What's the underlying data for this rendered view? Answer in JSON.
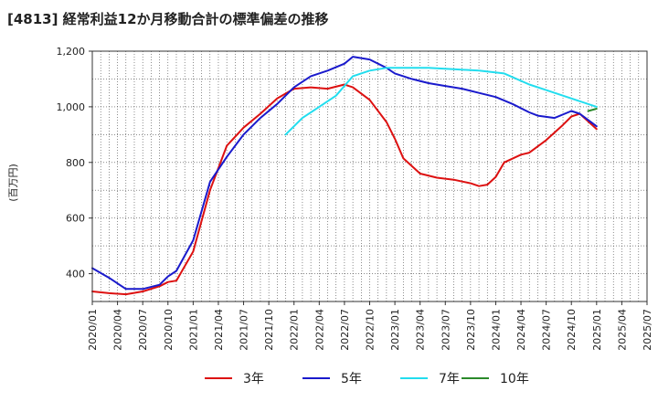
{
  "title": "[4813]  経常利益12か月移動合計の標準偏差の推移",
  "chart_data": {
    "type": "line",
    "title": "[4813]  経常利益12か月移動合計の標準偏差の推移",
    "ylabel": "(百万円)",
    "xlabel": "",
    "ylim": [
      300,
      1200
    ],
    "yticks": [
      400,
      600,
      800,
      1000,
      1200
    ],
    "ytick_labels": [
      "400",
      "600",
      "800",
      "1,000",
      "1,200"
    ],
    "xticks": [
      "2020/01",
      "2020/04",
      "2020/07",
      "2020/10",
      "2021/01",
      "2021/04",
      "2021/07",
      "2021/10",
      "2022/01",
      "2022/04",
      "2022/07",
      "2022/10",
      "2023/01",
      "2023/04",
      "2023/07",
      "2023/10",
      "2024/01",
      "2024/04",
      "2024/07",
      "2024/10",
      "2025/01",
      "2025/04",
      "2025/07"
    ],
    "grid": true,
    "legend_position": "bottom",
    "series": [
      {
        "name": "3年",
        "color": "#dd1111",
        "x": [
          "2020/01",
          "2020/03",
          "2020/05",
          "2020/07",
          "2020/09",
          "2020/10",
          "2020/11",
          "2021/01",
          "2021/03",
          "2021/05",
          "2021/07",
          "2021/09",
          "2021/11",
          "2022/01",
          "2022/03",
          "2022/05",
          "2022/07",
          "2022/08",
          "2022/10",
          "2022/12",
          "2023/01",
          "2023/02",
          "2023/04",
          "2023/06",
          "2023/08",
          "2023/10",
          "2023/11",
          "2023/12",
          "2024/01",
          "2024/02",
          "2024/04",
          "2024/05",
          "2024/07",
          "2024/09",
          "2024/10",
          "2024/11",
          "2025/01"
        ],
        "values": [
          336,
          330,
          326,
          336,
          355,
          370,
          375,
          480,
          700,
          860,
          925,
          975,
          1030,
          1065,
          1070,
          1065,
          1080,
          1070,
          1025,
          945,
          885,
          815,
          760,
          745,
          738,
          725,
          715,
          720,
          748,
          800,
          828,
          835,
          880,
          935,
          965,
          975,
          920
        ]
      },
      {
        "name": "5年",
        "color": "#1a1acc",
        "x": [
          "2020/01",
          "2020/03",
          "2020/05",
          "2020/07",
          "2020/09",
          "2020/10",
          "2020/11",
          "2021/01",
          "2021/03",
          "2021/05",
          "2021/07",
          "2021/09",
          "2021/11",
          "2022/01",
          "2022/03",
          "2022/05",
          "2022/07",
          "2022/08",
          "2022/10",
          "2022/12",
          "2023/01",
          "2023/03",
          "2023/05",
          "2023/07",
          "2023/09",
          "2023/11",
          "2024/01",
          "2024/03",
          "2024/05",
          "2024/06",
          "2024/08",
          "2024/10",
          "2024/11",
          "2025/01"
        ],
        "values": [
          420,
          385,
          345,
          345,
          360,
          390,
          410,
          520,
          730,
          820,
          900,
          960,
          1010,
          1070,
          1110,
          1130,
          1155,
          1180,
          1170,
          1140,
          1120,
          1100,
          1085,
          1075,
          1065,
          1050,
          1035,
          1010,
          980,
          968,
          960,
          985,
          975,
          930
        ]
      },
      {
        "name": "7年",
        "color": "#22ddee",
        "x": [
          "2021/12",
          "2022/02",
          "2022/04",
          "2022/06",
          "2022/08",
          "2022/10",
          "2022/12",
          "2023/02",
          "2023/05",
          "2023/08",
          "2023/11",
          "2024/02",
          "2024/05",
          "2024/07",
          "2024/09",
          "2024/11",
          "2025/01"
        ],
        "values": [
          900,
          960,
          1000,
          1040,
          1110,
          1130,
          1140,
          1140,
          1140,
          1135,
          1130,
          1120,
          1080,
          1060,
          1040,
          1020,
          1000
        ]
      },
      {
        "name": "10年",
        "color": "#2a8a2a",
        "x": [
          "2024/12",
          "2025/01"
        ],
        "values": [
          985,
          993
        ]
      }
    ]
  }
}
